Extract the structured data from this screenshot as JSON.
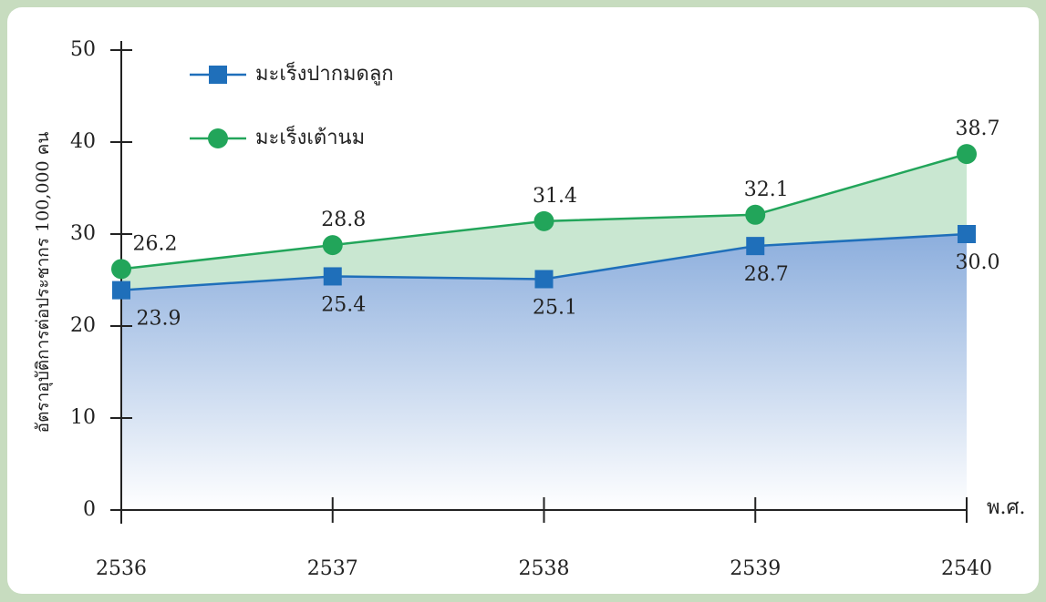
{
  "chart_data": {
    "type": "line",
    "y_label": "อัตราอุบัติการต่อประชากร 100,000 คน",
    "x_label": "พ.ศ.",
    "categories": [
      "2536",
      "2537",
      "2538",
      "2539",
      "2540"
    ],
    "series": [
      {
        "name": "มะเร็งปากมดลูก",
        "color": "#1f6fba",
        "values": [
          23.9,
          25.4,
          25.1,
          28.7,
          30.0
        ],
        "value_labels": [
          "23.9",
          "25.4",
          "25.1",
          "28.7",
          "30.0"
        ]
      },
      {
        "name": "มะเร็งเต้านม",
        "color": "#22a55a",
        "values": [
          26.2,
          28.8,
          31.4,
          32.1,
          38.7
        ]
      }
    ],
    "ylim": [
      0,
      50
    ],
    "yticks": [
      0,
      10,
      20,
      30,
      40,
      50
    ]
  }
}
